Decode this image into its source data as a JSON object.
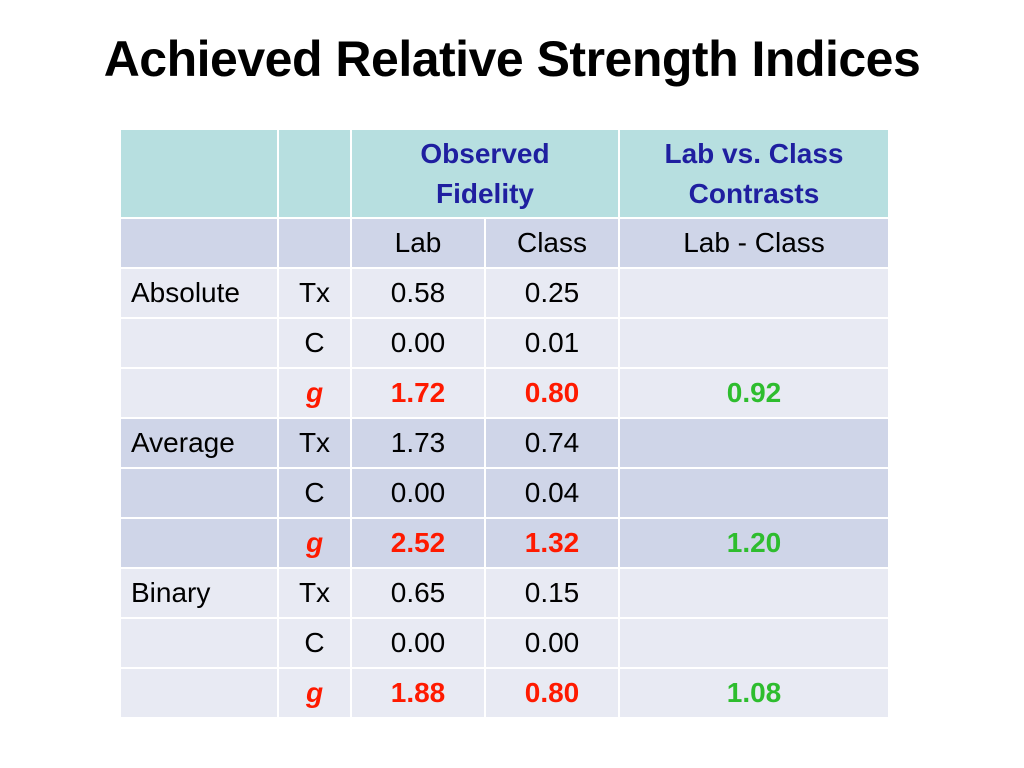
{
  "title": "Achieved Relative Strength Indices",
  "table": {
    "header": {
      "observed_fidelity": "Observed Fidelity",
      "contrasts": "Lab vs. Class Contrasts"
    },
    "subheader": {
      "lab": "Lab",
      "class": "Class",
      "diff": "Lab - Class"
    },
    "rows": [
      {
        "group": "Absolute",
        "label": "Tx",
        "lab": "0.58",
        "class": "0.25",
        "contrast": ""
      },
      {
        "group": "",
        "label": "C",
        "lab": "0.00",
        "class": "0.01",
        "contrast": ""
      },
      {
        "group": "",
        "label": "g",
        "lab": "1.72",
        "class": "0.80",
        "contrast": "0.92"
      },
      {
        "group": "Average",
        "label": "Tx",
        "lab": "1.73",
        "class": "0.74",
        "contrast": ""
      },
      {
        "group": "",
        "label": "C",
        "lab": "0.00",
        "class": "0.04",
        "contrast": ""
      },
      {
        "group": "",
        "label": "g",
        "lab": "2.52",
        "class": "1.32",
        "contrast": "1.20"
      },
      {
        "group": "Binary",
        "label": "Tx",
        "lab": "0.65",
        "class": "0.15",
        "contrast": ""
      },
      {
        "group": "",
        "label": "C",
        "lab": "0.00",
        "class": "0.00",
        "contrast": ""
      },
      {
        "group": "",
        "label": "g",
        "lab": "1.88",
        "class": "0.80",
        "contrast": "1.08"
      }
    ]
  },
  "colors": {
    "header_bg": "#b7dfe0",
    "header_text": "#1f1fa0",
    "row_dark": "#cfd5e8",
    "row_light": "#e8eaf3",
    "g_red": "#ff1a00",
    "contrast_green": "#2ebd2e"
  }
}
